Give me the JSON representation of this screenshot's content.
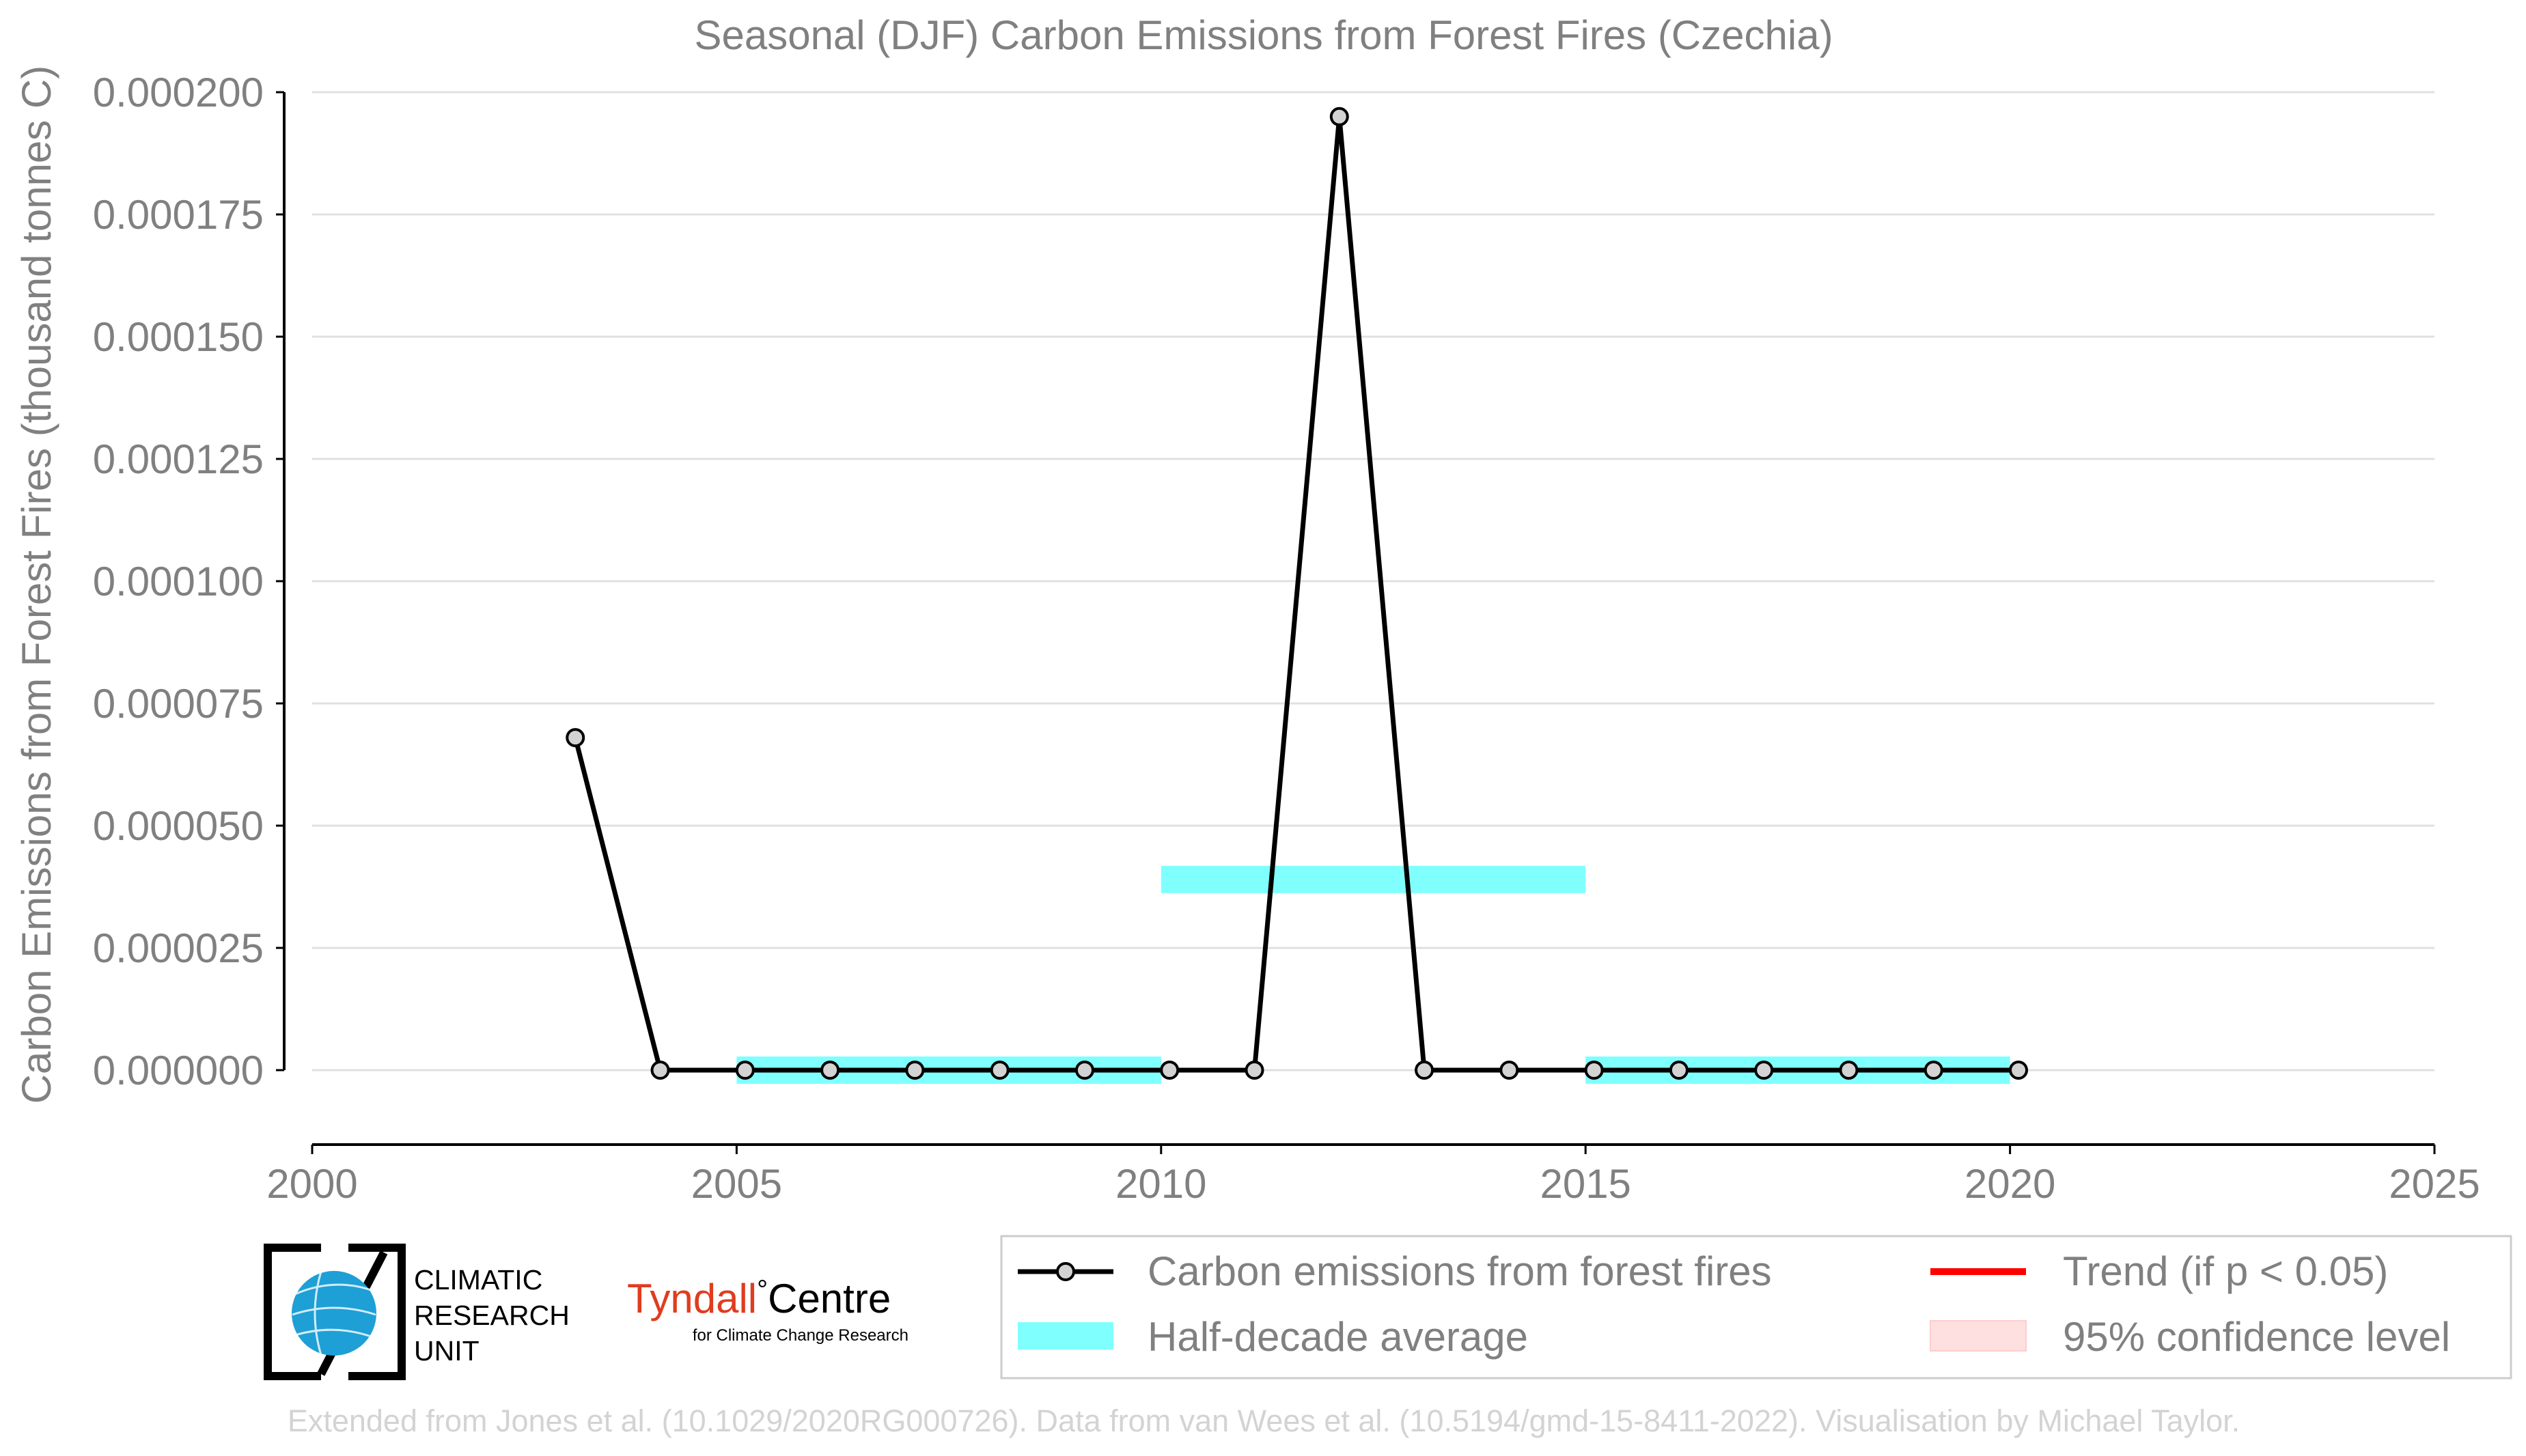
{
  "chart_data": {
    "type": "line",
    "title": "Seasonal (DJF) Carbon Emissions from Forest Fires (Czechia)",
    "xlabel": "",
    "ylabel": "Carbon Emissions from Forest Fires (thousand tonnes C)",
    "xlim": [
      2000,
      2025
    ],
    "ylim": [
      -1.8e-05,
      0.0002
    ],
    "xticks": [
      2000,
      2005,
      2010,
      2015,
      2020,
      2025
    ],
    "xtick_labels": [
      "2000",
      "2005",
      "2010",
      "2015",
      "2020",
      "2025"
    ],
    "yticks": [
      0,
      2.5e-05,
      5e-05,
      7.5e-05,
      0.0001,
      0.000125,
      0.00015,
      0.000175,
      0.0002
    ],
    "ytick_labels": [
      "0.000000",
      "0.000025",
      "0.000050",
      "0.000075",
      "0.000100",
      "0.000125",
      "0.000150",
      "0.000175",
      "0.000200"
    ],
    "grid": "horizontal",
    "series": [
      {
        "name": "Carbon emissions from forest fires",
        "color": "#000000",
        "marker_fill": "#d3d3d3",
        "x": [
          2003.1,
          2004.1,
          2005.1,
          2006.1,
          2007.1,
          2008.1,
          2009.1,
          2010.1,
          2011.1,
          2012.1,
          2013.1,
          2014.1,
          2015.1,
          2016.1,
          2017.1,
          2018.1,
          2019.1,
          2020.1
        ],
        "y": [
          6.8e-05,
          0,
          0,
          0,
          0,
          0,
          0,
          0,
          0,
          0.000195,
          0,
          0,
          0,
          0,
          0,
          0,
          0,
          0
        ]
      }
    ],
    "half_decade_average": {
      "name": "Half-decade average",
      "color": "#80ffff",
      "segments": [
        {
          "x_start": 2005,
          "x_end": 2010,
          "value": 0
        },
        {
          "x_start": 2010,
          "x_end": 2015,
          "value": 3.9e-05
        },
        {
          "x_start": 2015,
          "x_end": 2020,
          "value": 0
        }
      ]
    },
    "legend": {
      "position": "bottom-right",
      "entries": [
        {
          "label": "Carbon emissions from forest fires",
          "kind": "line-marker",
          "color": "#000000"
        },
        {
          "label": "Trend (if p < 0.05)",
          "kind": "line",
          "color": "#ff0000"
        },
        {
          "label": "Half-decade average",
          "kind": "patch",
          "color": "#80ffff"
        },
        {
          "label": "95% confidence level",
          "kind": "patch",
          "color": "#ffe0e0"
        }
      ]
    }
  },
  "logos": {
    "cru": {
      "line1": "CLIMATIC",
      "line2": "RESEARCH",
      "line3": "UNIT"
    },
    "tyndall": {
      "name_red": "Tyndall",
      "degree": "°",
      "name_black": "Centre",
      "subtitle": "for Climate Change Research"
    }
  },
  "footer": {
    "credit": "Extended from Jones et al. (10.1029/2020RG000726). Data from van Wees et al. (10.5194/gmd-15-8411-2022). Visualisation by Michael Taylor."
  },
  "colors": {
    "text_gray": "#808080",
    "grid": "#e0e0e0",
    "footer_text": "#d3d3d3",
    "cru_blue": "#1e9fd6",
    "tyndall_red": "#e03c1f"
  }
}
